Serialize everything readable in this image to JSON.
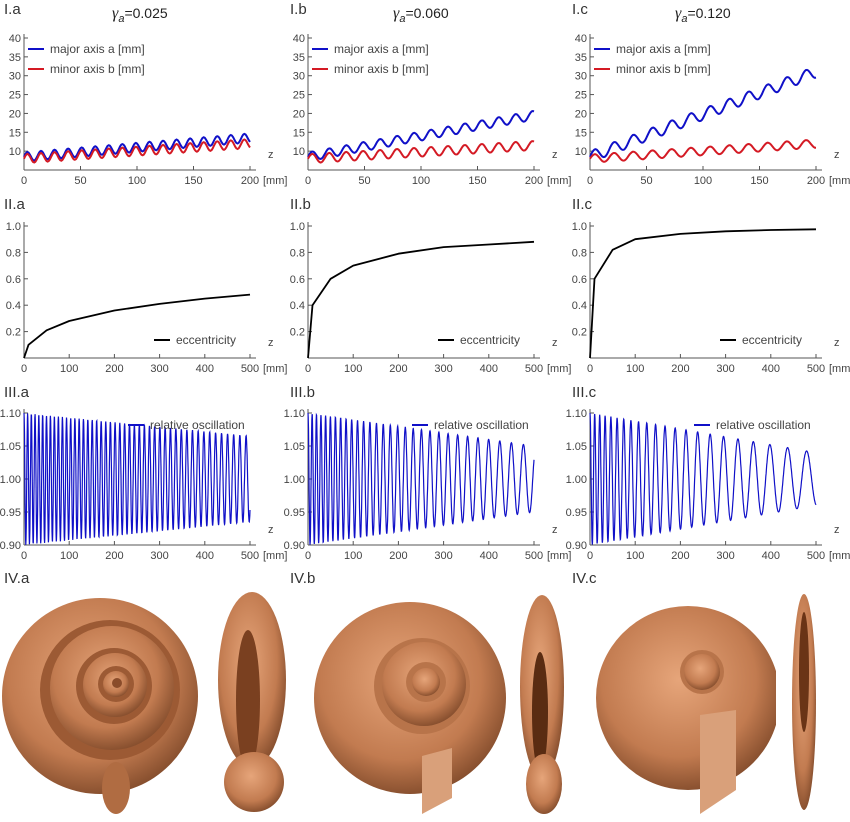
{
  "figure": {
    "row_labels": {
      "I": [
        "I.a",
        "I.b",
        "I.c"
      ],
      "II": [
        "II.a",
        "II.b",
        "II.c"
      ],
      "III": [
        "III.a",
        "III.b",
        "III.c"
      ],
      "IV": [
        "IV.a",
        "IV.b",
        "IV.c"
      ]
    },
    "gamma_symbol": "γ",
    "gamma_sub": "a",
    "gamma_values": [
      "=0.025",
      "=0.060",
      "=0.120"
    ]
  },
  "colors": {
    "major": "#1010c8",
    "minor": "#d41a24",
    "ecc": "#000000",
    "osc": "#1010c8",
    "shell": "#c7845a"
  },
  "chart_data": [
    {
      "type": "line",
      "panel": "I.a",
      "xlim": [
        0,
        200
      ],
      "ylim": [
        5,
        40
      ],
      "xticks": [
        0,
        50,
        100,
        150,
        200
      ],
      "yticks": [
        10,
        15,
        20,
        25,
        30,
        35,
        40
      ],
      "xlabel": "z",
      "xunit": "[mm]",
      "legend_position": "top-left",
      "series": [
        {
          "name": "major axis a [mm]",
          "start": 8.5,
          "end": 13.5,
          "amplitude": 1.2,
          "period": 12
        },
        {
          "name": "minor axis b [mm]",
          "start": 8.0,
          "end": 12.0,
          "amplitude": 1.2,
          "period": 12
        }
      ]
    },
    {
      "type": "line",
      "panel": "I.b",
      "xlim": [
        0,
        200
      ],
      "ylim": [
        5,
        40
      ],
      "xticks": [
        0,
        50,
        100,
        150,
        200
      ],
      "yticks": [
        10,
        15,
        20,
        25,
        30,
        35,
        40
      ],
      "xlabel": "z",
      "xunit": "[mm]",
      "legend_position": "top-left",
      "series": [
        {
          "name": "major axis a [mm]",
          "start": 8.5,
          "end": 19.5,
          "amplitude": 1.2,
          "period": 15
        },
        {
          "name": "minor axis b [mm]",
          "start": 8.0,
          "end": 11.5,
          "amplitude": 1.2,
          "period": 15
        }
      ]
    },
    {
      "type": "line",
      "panel": "I.c",
      "xlim": [
        0,
        200
      ],
      "ylim": [
        5,
        40
      ],
      "xticks": [
        0,
        50,
        100,
        150,
        200
      ],
      "yticks": [
        10,
        15,
        20,
        25,
        30,
        35,
        40
      ],
      "xlabel": "z",
      "xunit": "[mm]",
      "legend_position": "top-left",
      "series": [
        {
          "name": "major axis a [mm]",
          "start": 8.5,
          "end": 31.0,
          "amplitude": 1.5,
          "period": 17
        },
        {
          "name": "minor axis b [mm]",
          "start": 8.0,
          "end": 12.0,
          "amplitude": 1.1,
          "period": 17
        }
      ]
    },
    {
      "type": "line",
      "panel": "II.a",
      "xlim": [
        0,
        500
      ],
      "ylim": [
        0,
        1.0
      ],
      "xticks": [
        0,
        100,
        200,
        300,
        400,
        500
      ],
      "yticks": [
        0.2,
        0.4,
        0.6,
        0.8,
        1.0
      ],
      "xlabel": "z",
      "xunit": "[mm]",
      "legend_position": "bottom-right",
      "series": [
        {
          "name": "eccentricity",
          "x": [
            0,
            10,
            50,
            100,
            200,
            300,
            400,
            500
          ],
          "y": [
            0,
            0.1,
            0.21,
            0.28,
            0.36,
            0.41,
            0.45,
            0.48
          ]
        }
      ]
    },
    {
      "type": "line",
      "panel": "II.b",
      "xlim": [
        0,
        500
      ],
      "ylim": [
        0,
        1.0
      ],
      "xticks": [
        0,
        100,
        200,
        300,
        400,
        500
      ],
      "yticks": [
        0.2,
        0.4,
        0.6,
        0.8,
        1.0
      ],
      "xlabel": "z",
      "xunit": "[mm]",
      "legend_position": "bottom-right",
      "series": [
        {
          "name": "eccentricity",
          "x": [
            0,
            10,
            50,
            100,
            200,
            300,
            400,
            500
          ],
          "y": [
            0,
            0.4,
            0.6,
            0.7,
            0.79,
            0.84,
            0.86,
            0.88
          ]
        }
      ]
    },
    {
      "type": "line",
      "panel": "II.c",
      "xlim": [
        0,
        500
      ],
      "ylim": [
        0,
        1.0
      ],
      "xticks": [
        0,
        100,
        200,
        300,
        400,
        500
      ],
      "yticks": [
        0.2,
        0.4,
        0.6,
        0.8,
        1.0
      ],
      "xlabel": "z",
      "xunit": "[mm]",
      "legend_position": "bottom-right",
      "series": [
        {
          "name": "eccentricity",
          "x": [
            0,
            10,
            50,
            100,
            200,
            300,
            400,
            500
          ],
          "y": [
            0,
            0.6,
            0.82,
            0.9,
            0.94,
            0.96,
            0.97,
            0.975
          ]
        }
      ]
    },
    {
      "type": "line",
      "panel": "III.a",
      "xlim": [
        0,
        500
      ],
      "ylim": [
        0.9,
        1.1
      ],
      "xticks": [
        0,
        100,
        200,
        300,
        400,
        500
      ],
      "yticks": [
        0.9,
        0.95,
        1.0,
        1.05,
        1.1
      ],
      "ytick_labels": [
        "0.90",
        "0.95",
        "1.00",
        "1.05",
        "1.10"
      ],
      "xlabel": "z",
      "xunit": "[mm]",
      "legend_position": "top-right",
      "series": [
        {
          "name": "relative oscillation",
          "center": 1.0,
          "amp_start": 0.1,
          "amp_end": 0.065,
          "period_start": 8,
          "period_end": 14
        }
      ]
    },
    {
      "type": "line",
      "panel": "III.b",
      "xlim": [
        0,
        500
      ],
      "ylim": [
        0.9,
        1.1
      ],
      "xticks": [
        0,
        100,
        200,
        300,
        400,
        500
      ],
      "yticks": [
        0.9,
        0.95,
        1.0,
        1.05,
        1.1
      ],
      "ytick_labels": [
        "0.90",
        "0.95",
        "1.00",
        "1.05",
        "1.10"
      ],
      "xlabel": "z",
      "xunit": "[mm]",
      "legend_position": "top-right",
      "series": [
        {
          "name": "relative oscillation",
          "center": 1.0,
          "amp_start": 0.1,
          "amp_end": 0.05,
          "period_start": 9,
          "period_end": 28
        }
      ]
    },
    {
      "type": "line",
      "panel": "III.c",
      "xlim": [
        0,
        500
      ],
      "ylim": [
        0.9,
        1.1
      ],
      "xticks": [
        0,
        100,
        200,
        300,
        400,
        500
      ],
      "yticks": [
        0.9,
        0.95,
        1.0,
        1.05,
        1.1
      ],
      "ytick_labels": [
        "0.90",
        "0.95",
        "1.00",
        "1.05",
        "1.10"
      ],
      "xlabel": "z",
      "xunit": "[mm]",
      "legend_position": "top-right",
      "series": [
        {
          "name": "relative oscillation",
          "center": 1.0,
          "amp_start": 0.1,
          "amp_end": 0.04,
          "period_start": 10,
          "period_end": 45
        }
      ]
    }
  ]
}
